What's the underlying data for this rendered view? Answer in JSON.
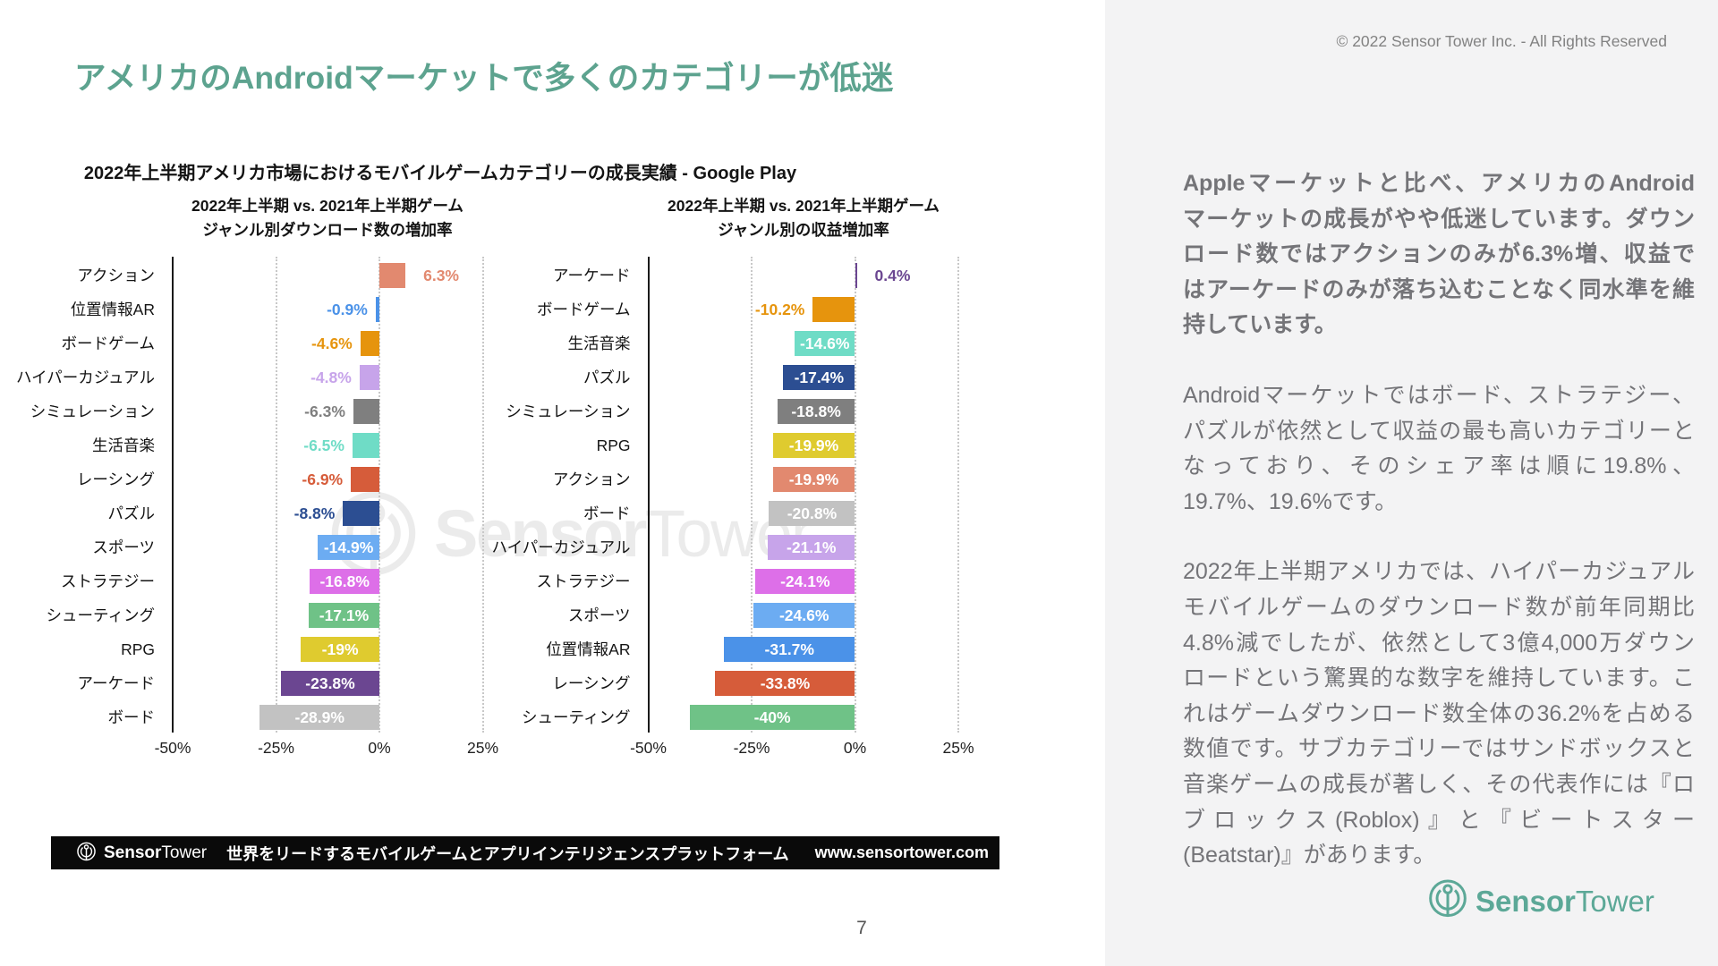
{
  "slide": {
    "title": "アメリカのAndroidマーケットで多くのカテゴリーが低迷",
    "title_color": "#5DA38F",
    "page_number": "7"
  },
  "brand": {
    "bold": "Sensor",
    "light": "Tower"
  },
  "chart_data": {
    "type": "bar",
    "title": "2022年上半期アメリカ市場におけるモバイルゲームカテゴリーの成長実績 - Google Play",
    "orientation": "horizontal",
    "xlim": [
      -50,
      25
    ],
    "x_tick_values": [
      -50,
      -25,
      0,
      25
    ],
    "x_tick_labels": [
      "-50%",
      "-25%",
      "0%",
      "25%"
    ],
    "grid": "dotted vertical at -25/0/25, solid axis at -50",
    "colors": {
      "アクション": "#E2896F",
      "位置情報AR": "#4B92E8",
      "ボードゲーム": "#E6940D",
      "ハイパーカジュアル": "#C7A4EA",
      "シミュレーション": "#7F7F7F",
      "生活音楽": "#6FDCC6",
      "レーシング": "#D65C3A",
      "パズル": "#2C4E92",
      "スポーツ": "#6CACF2",
      "ストラテジー": "#DD6FE8",
      "シューティング": "#6FC287",
      "RPG": "#DFCB2F",
      "アーケード": "#6B4691",
      "ボード": "#C2C2C2"
    },
    "charts": [
      {
        "name": "downloads-growth",
        "subtitle_line1": "2022年上半期 vs. 2021年上半期ゲーム",
        "subtitle_line2": "ジャンル別ダウンロード数の増加率",
        "categories": [
          "アクション",
          "位置情報AR",
          "ボードゲーム",
          "ハイパーカジュアル",
          "シミュレーション",
          "生活音楽",
          "レーシング",
          "パズル",
          "スポーツ",
          "ストラテジー",
          "シューティング",
          "RPG",
          "アーケード",
          "ボード"
        ],
        "values": [
          6.3,
          -0.9,
          -4.6,
          -4.8,
          -6.3,
          -6.5,
          -6.9,
          -8.8,
          -14.9,
          -16.8,
          -17.1,
          -19,
          -23.8,
          -28.9
        ],
        "labels": [
          "6.3%",
          "-0.9%",
          "-4.6%",
          "-4.8%",
          "-6.3%",
          "-6.5%",
          "-6.9%",
          "-8.8%",
          "-14.9%",
          "-16.8%",
          "-17.1%",
          "-19%",
          "-23.8%",
          "-28.9%"
        ]
      },
      {
        "name": "revenue-growth",
        "subtitle_line1": "2022年上半期 vs. 2021年上半期ゲーム",
        "subtitle_line2": "ジャンル別の収益増加率",
        "categories": [
          "アーケード",
          "ボードゲーム",
          "生活音楽",
          "パズル",
          "シミュレーション",
          "RPG",
          "アクション",
          "ボード",
          "ハイパーカジュアル",
          "ストラテジー",
          "スポーツ",
          "位置情報AR",
          "レーシング",
          "シューティング"
        ],
        "values": [
          0.4,
          -10.2,
          -14.6,
          -17.4,
          -18.8,
          -19.9,
          -19.9,
          -20.8,
          -21.1,
          -24.1,
          -24.6,
          -31.7,
          -33.8,
          -40
        ],
        "labels": [
          "0.4%",
          "-10.2%",
          "-14.6%",
          "-17.4%",
          "-18.8%",
          "-19.9%",
          "-19.9%",
          "-20.8%",
          "-21.1%",
          "-24.1%",
          "-24.6%",
          "-31.7%",
          "-33.8%",
          "-40%"
        ]
      }
    ]
  },
  "footer": {
    "tagline": "世界をリードするモバイルゲームとアプリインテリジェンスプラットフォーム",
    "url": "www.sensortower.com"
  },
  "sidebar": {
    "copyright": "© 2022 Sensor Tower Inc. - All Rights Reserved",
    "logo_color": "#5CA897",
    "paragraphs": [
      {
        "bold": true,
        "lines": [
          "Appleマーケットと比べ、アメリカのAndroid",
          "マーケットの成長がやや低迷しています。ダウン",
          "ロード数ではアクションのみが6.3%増、収益で",
          "はアーケードのみが落ち込むことなく同水準を維",
          "持しています。"
        ]
      },
      {
        "bold": false,
        "lines": [
          "Androidマーケットではボード、ストラテジー、",
          "パズルが依然として収益の最も高いカテゴリーと",
          "なっており、そのシェア率は順に19.8%、",
          "19.7%、19.6%です。"
        ]
      },
      {
        "bold": false,
        "lines": [
          "2022年上半期アメリカでは、ハイパーカジュアル",
          "モバイルゲームのダウンロード数が前年同期比",
          "4.8%減でしたが、依然として3億4,000万ダウン",
          "ロードという驚異的な数字を維持しています。こ",
          "れはゲームダウンロード数全体の36.2%を占める",
          "数値です。サブカテゴリーではサンドボックスと",
          "音楽ゲームの成長が著しく、その代表作には『ロ",
          "ブロックス(Roblox)』と『ビートスター",
          "(Beatstar)』があります。"
        ]
      }
    ]
  }
}
